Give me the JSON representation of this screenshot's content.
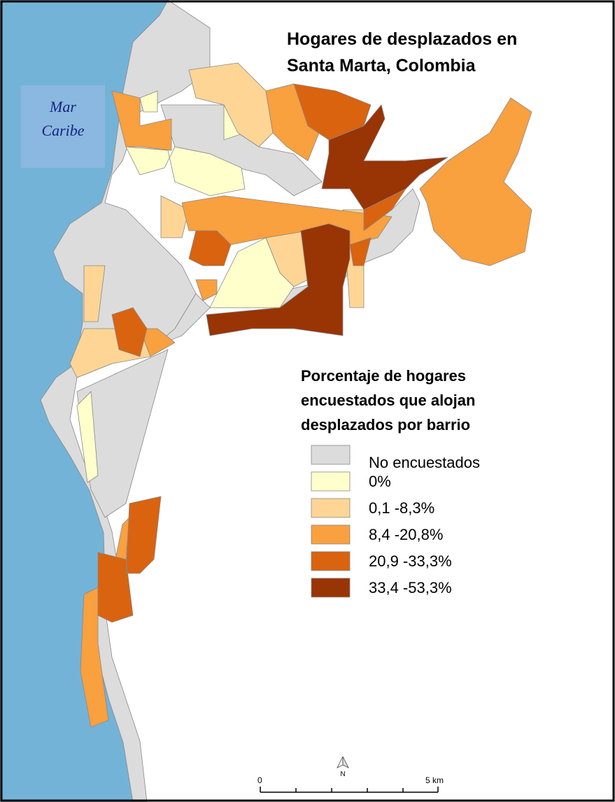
{
  "map": {
    "title": [
      "Hogares de desplazados en",
      "Santa Marta, Colombia"
    ],
    "sea_label": [
      "Mar",
      "Caribe"
    ],
    "legend": {
      "title": [
        "Porcentaje de hogares",
        "encuestados que alojan",
        "desplazados por barrio"
      ],
      "items": [
        {
          "label": "No encuestados",
          "color": "#dcdcdc"
        },
        {
          "label": "0%",
          "color": "#ffffcc"
        },
        {
          "label": "0,1 -8,3%",
          "color": "#fed595"
        },
        {
          "label": "8,4 -20,8%",
          "color": "#f9a03f"
        },
        {
          "label": "20,9 -33,3%",
          "color": "#d9630f"
        },
        {
          "label": "33,4 -53,3%",
          "color": "#993404"
        }
      ]
    },
    "north": "N",
    "scale": {
      "labels": [
        "0",
        "5 km"
      ]
    }
  }
}
